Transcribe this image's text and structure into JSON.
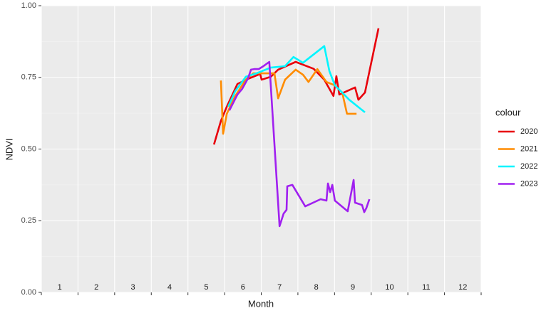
{
  "chart_data": {
    "type": "line",
    "x_label": "Month",
    "y_label": "NDVI",
    "legend_title": "colour",
    "legend_position": "right",
    "xlim": [
      1,
      13
    ],
    "xticks": [
      1,
      2,
      3,
      4,
      5,
      6,
      7,
      8,
      9,
      10,
      11,
      12,
      13
    ],
    "ylim": [
      0,
      1
    ],
    "yticks": [
      {
        "value": 0,
        "label": "0.00"
      },
      {
        "value": 0.25,
        "label": "0.25"
      },
      {
        "value": 0.5,
        "label": "0.50"
      },
      {
        "value": 0.75,
        "label": "0.75"
      },
      {
        "value": 1,
        "label": "1.00"
      }
    ],
    "grid": true,
    "month_labels": [
      "1",
      "2",
      "3",
      "4",
      "5",
      "6",
      "7",
      "8",
      "9",
      "10",
      "11",
      "12"
    ],
    "series": [
      {
        "name": "2020",
        "color": "#e8000b",
        "x": [
          5.71,
          5.9,
          6.06,
          6.35,
          6.68,
          6.97,
          7.01,
          7.26,
          7.46,
          7.94,
          8.43,
          8.72,
          8.97,
          9.05,
          9.13,
          9.56,
          9.65,
          9.83,
          10.2
        ],
        "values": [
          0.516,
          0.598,
          0.648,
          0.727,
          0.747,
          0.762,
          0.742,
          0.752,
          0.777,
          0.804,
          0.78,
          0.742,
          0.685,
          0.754,
          0.69,
          0.715,
          0.672,
          0.697,
          0.921
        ]
      },
      {
        "name": "2021",
        "color": "#ff8c00",
        "x": [
          5.9,
          5.96,
          6.06,
          6.29,
          6.58,
          6.78,
          7.36,
          7.46,
          7.65,
          7.94,
          8.14,
          8.29,
          8.53,
          8.78,
          9.01,
          9.21,
          9.34,
          9.6
        ],
        "values": [
          0.739,
          0.553,
          0.623,
          0.685,
          0.742,
          0.764,
          0.764,
          0.677,
          0.742,
          0.777,
          0.759,
          0.734,
          0.779,
          0.734,
          0.722,
          0.697,
          0.623,
          0.623
        ]
      },
      {
        "name": "2022",
        "color": "#00f5ff",
        "x": [
          6.1,
          6.29,
          6.58,
          6.87,
          7.26,
          7.65,
          7.88,
          8.14,
          8.72,
          8.86,
          9.01,
          9.21,
          9.4,
          9.83
        ],
        "values": [
          0.648,
          0.702,
          0.752,
          0.764,
          0.784,
          0.789,
          0.821,
          0.801,
          0.859,
          0.772,
          0.722,
          0.697,
          0.672,
          0.628
        ]
      },
      {
        "name": "2023",
        "color": "#a020f0",
        "x": [
          6.13,
          6.35,
          6.48,
          6.64,
          6.72,
          6.81,
          6.93,
          7.07,
          7.22,
          7.5,
          7.61,
          7.69,
          7.71,
          7.85,
          8.2,
          8.62,
          8.78,
          8.82,
          8.88,
          8.94,
          9.01,
          9.36,
          9.52,
          9.56,
          9.75,
          9.81,
          9.87,
          9.95
        ],
        "values": [
          0.635,
          0.69,
          0.71,
          0.747,
          0.777,
          0.779,
          0.779,
          0.79,
          0.804,
          0.231,
          0.275,
          0.288,
          0.37,
          0.375,
          0.3,
          0.325,
          0.32,
          0.38,
          0.35,
          0.375,
          0.32,
          0.283,
          0.392,
          0.313,
          0.305,
          0.28,
          0.295,
          0.325
        ]
      }
    ]
  }
}
